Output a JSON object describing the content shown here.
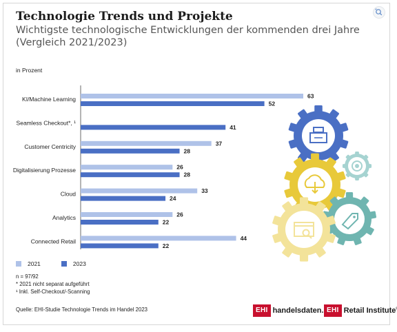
{
  "header": {
    "title": "Technologie Trends und Projekte",
    "subtitle": "Wichtigste technologische Entwicklungen der kommenden drei Jahre (Vergleich 2021/2023)",
    "unit": "in Prozent"
  },
  "colors": {
    "y2021": "#afc2e8",
    "y2023": "#4a6fc4",
    "gear_blue": "#4a6fc4",
    "gear_yellow": "#e8c93a",
    "gear_teal": "#6fb5b0",
    "gear_light_yellow": "#f3e39a",
    "gear_light_teal": "#a6d3d1",
    "brand_red": "#c8102e"
  },
  "chart_data": {
    "type": "bar",
    "orientation": "horizontal",
    "categories": [
      "KI/Machine Learning",
      "Seamless Checkout*, ¹",
      "Customer Centricity",
      "Digitalisierung Prozesse",
      "Cloud",
      "Analytics",
      "Connected Retail"
    ],
    "series": [
      {
        "name": "2021",
        "values": [
          63,
          null,
          37,
          26,
          33,
          26,
          44
        ]
      },
      {
        "name": "2023",
        "values": [
          52,
          41,
          28,
          28,
          24,
          22,
          22
        ]
      }
    ],
    "xlim": [
      0,
      63
    ],
    "grid": false,
    "legend": "bottom-left"
  },
  "legend": {
    "y2021": "2021",
    "y2023": "2023"
  },
  "notes": {
    "n": "n = 97/92",
    "star": "*  2021 nicht separat aufgeführt",
    "one": "¹  Inkl. Self-Checkout/-Scanning"
  },
  "source": "Quelle: EHI-Studie Technologie Trends im Handel 2023",
  "brands": {
    "logo1_box": "EHI",
    "logo1_text": "handelsdaten.de",
    "logo2_box": "EHI",
    "logo2_text": "Retail Institute",
    "logo2_mark": "®"
  },
  "icons": [
    "zoom-icon",
    "gear-cash-register-icon",
    "gear-cloud-download-icon",
    "gear-settings-icon",
    "gear-price-tag-icon",
    "gear-browser-search-icon"
  ]
}
